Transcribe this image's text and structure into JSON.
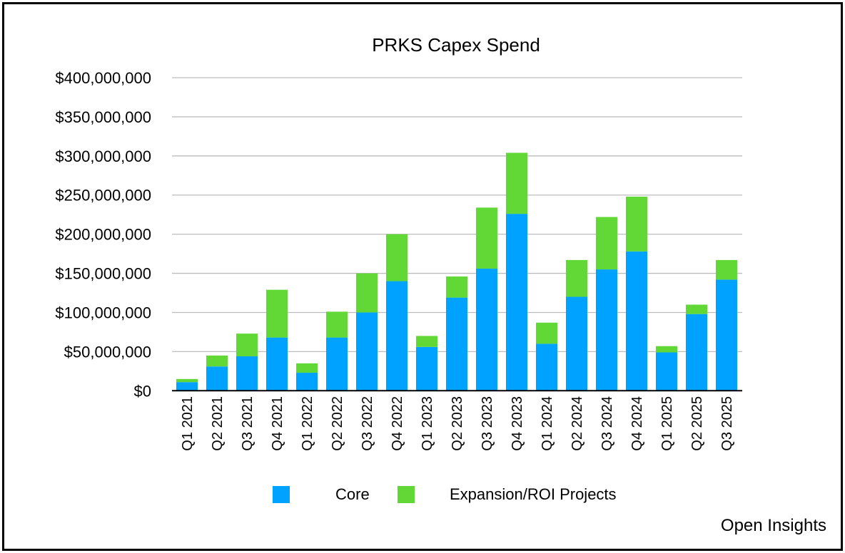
{
  "chart_data": {
    "type": "bar",
    "stacked": true,
    "title": "PRKS Capex Spend",
    "xlabel": "",
    "ylabel": "",
    "ylim": [
      0,
      400000000
    ],
    "yticks": [
      0,
      50000000,
      100000000,
      150000000,
      200000000,
      250000000,
      300000000,
      350000000,
      400000000
    ],
    "ytick_labels": [
      "$0",
      "$50,000,000",
      "$100,000,000",
      "$150,000,000",
      "$200,000,000",
      "$250,000,000",
      "$300,000,000",
      "$350,000,000",
      "$400,000,000"
    ],
    "grid": true,
    "legend_position": "bottom",
    "categories": [
      "Q1 2021",
      "Q2 2021",
      "Q3 2021",
      "Q4 2021",
      "Q1 2022",
      "Q2 2022",
      "Q3 2022",
      "Q4 2022",
      "Q1 2023",
      "Q2 2023",
      "Q3 2023",
      "Q4 2023",
      "Q1 2024",
      "Q2 2024",
      "Q3 2024",
      "Q4 2024",
      "Q1 2025",
      "Q2 2025",
      "Q3 2025"
    ],
    "series": [
      {
        "name": "Core",
        "color": "#00a2ff",
        "values": [
          11000000,
          31000000,
          44000000,
          68000000,
          23000000,
          68000000,
          100000000,
          140000000,
          56000000,
          119000000,
          156000000,
          226000000,
          60000000,
          120000000,
          155000000,
          178000000,
          49000000,
          98000000,
          142000000
        ]
      },
      {
        "name": "Expansion/ROI Projects",
        "color": "#61d836",
        "values": [
          4000000,
          14000000,
          29000000,
          61000000,
          12000000,
          33000000,
          50000000,
          60000000,
          14000000,
          27000000,
          78000000,
          78000000,
          27000000,
          47000000,
          67000000,
          70000000,
          8000000,
          12000000,
          25000000
        ]
      }
    ]
  },
  "credit": "Open Insights"
}
